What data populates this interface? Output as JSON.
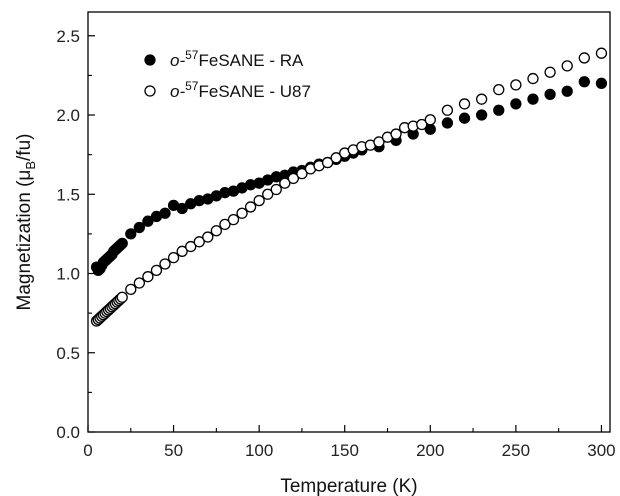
{
  "chart_data": {
    "type": "scatter",
    "xlabel": "Temperature (K)",
    "ylabel": {
      "prefix": "Magnetization (μ",
      "sub": "B",
      "suffix": "/fu)"
    },
    "xlim": [
      0,
      305
    ],
    "ylim": [
      0,
      2.65
    ],
    "x_ticks": [
      0,
      50,
      100,
      150,
      200,
      250,
      300
    ],
    "x_tick_labels": [
      "0",
      "50",
      "100",
      "150",
      "200",
      "250",
      "300"
    ],
    "y_ticks": [
      0.0,
      0.5,
      1.0,
      1.5,
      2.0,
      2.5
    ],
    "y_tick_labels": [
      "0.0",
      "0.5",
      "1.0",
      "1.5",
      "2.0",
      "2.5"
    ],
    "grid": false,
    "legend_position": "top-left",
    "series": [
      {
        "name": {
          "prefix": "o-",
          "sup": "57",
          "rest": "FeSANE - RA"
        },
        "marker": "filled-circle",
        "color": "#000000",
        "x": [
          5,
          6,
          7,
          8,
          9,
          10,
          11,
          12,
          13,
          14,
          15,
          16,
          17,
          18,
          19,
          20,
          25,
          30,
          35,
          40,
          45,
          50,
          55,
          60,
          65,
          70,
          75,
          80,
          85,
          90,
          95,
          100,
          105,
          110,
          115,
          120,
          125,
          130,
          135,
          140,
          145,
          150,
          155,
          160,
          170,
          180,
          190,
          200,
          210,
          220,
          230,
          240,
          250,
          260,
          270,
          280,
          290,
          300
        ],
        "y": [
          1.04,
          1.02,
          1.03,
          1.05,
          1.07,
          1.08,
          1.09,
          1.1,
          1.11,
          1.12,
          1.14,
          1.15,
          1.16,
          1.17,
          1.18,
          1.19,
          1.25,
          1.29,
          1.33,
          1.36,
          1.38,
          1.43,
          1.41,
          1.44,
          1.46,
          1.47,
          1.49,
          1.51,
          1.52,
          1.54,
          1.56,
          1.57,
          1.59,
          1.61,
          1.62,
          1.64,
          1.65,
          1.67,
          1.69,
          1.7,
          1.72,
          1.74,
          1.76,
          1.78,
          1.8,
          1.84,
          1.88,
          1.91,
          1.95,
          1.98,
          2.0,
          2.03,
          2.07,
          2.1,
          2.13,
          2.15,
          2.21,
          2.2
        ]
      },
      {
        "name": {
          "prefix": "o-",
          "sup": "57",
          "rest": "FeSANE - U87"
        },
        "marker": "open-circle",
        "color": "#000000",
        "x": [
          5,
          6,
          7,
          8,
          9,
          10,
          11,
          12,
          13,
          14,
          15,
          16,
          17,
          18,
          19,
          20,
          25,
          30,
          35,
          40,
          45,
          50,
          55,
          60,
          65,
          70,
          75,
          80,
          85,
          90,
          95,
          100,
          105,
          110,
          115,
          120,
          125,
          130,
          135,
          140,
          145,
          150,
          155,
          160,
          165,
          170,
          175,
          180,
          185,
          190,
          195,
          200,
          210,
          220,
          230,
          240,
          250,
          260,
          270,
          280,
          290,
          300
        ],
        "y": [
          0.7,
          0.71,
          0.72,
          0.73,
          0.74,
          0.75,
          0.76,
          0.77,
          0.78,
          0.79,
          0.8,
          0.81,
          0.82,
          0.83,
          0.84,
          0.85,
          0.9,
          0.94,
          0.98,
          1.02,
          1.06,
          1.1,
          1.14,
          1.17,
          1.2,
          1.23,
          1.27,
          1.31,
          1.34,
          1.38,
          1.42,
          1.46,
          1.5,
          1.53,
          1.57,
          1.6,
          1.63,
          1.66,
          1.68,
          1.7,
          1.73,
          1.76,
          1.78,
          1.8,
          1.81,
          1.83,
          1.86,
          1.88,
          1.92,
          1.93,
          1.94,
          1.97,
          2.03,
          2.07,
          2.1,
          2.16,
          2.19,
          2.23,
          2.27,
          2.31,
          2.36,
          2.39
        ]
      }
    ]
  }
}
